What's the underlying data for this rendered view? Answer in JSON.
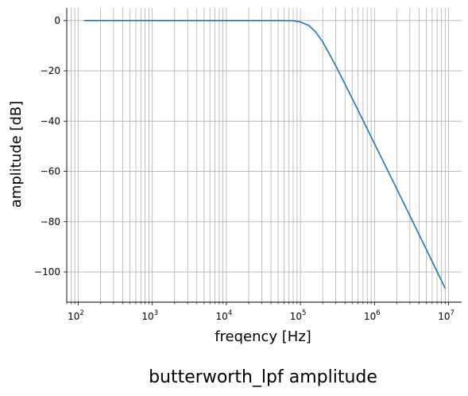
{
  "chart_data": {
    "type": "line",
    "title": "butterworth_lpf amplitude",
    "xlabel": "freqency [Hz]",
    "ylabel": "amplitude [dB]",
    "x_scale": "log",
    "xlim": [
      70,
      15000000
    ],
    "ylim": [
      -112,
      5
    ],
    "grid": true,
    "grid_minor_x": true,
    "line_color": "#1f77b4",
    "grid_color": "#b0b0b0",
    "x_ticks": [
      {
        "base": "10",
        "exp": "2",
        "value": 100
      },
      {
        "base": "10",
        "exp": "3",
        "value": 1000
      },
      {
        "base": "10",
        "exp": "4",
        "value": 10000
      },
      {
        "base": "10",
        "exp": "5",
        "value": 100000
      },
      {
        "base": "10",
        "exp": "6",
        "value": 1000000
      },
      {
        "base": "10",
        "exp": "7",
        "value": 10000000
      }
    ],
    "y_ticks": [
      {
        "label": "0",
        "value": 0
      },
      {
        "label": "−20",
        "value": -20
      },
      {
        "label": "−40",
        "value": -40
      },
      {
        "label": "−60",
        "value": -60
      },
      {
        "label": "−80",
        "value": -80
      },
      {
        "label": "−100",
        "value": -100
      }
    ],
    "series": [
      {
        "points": [
          [
            120,
            0
          ],
          [
            1000,
            0
          ],
          [
            10000,
            0
          ],
          [
            50000,
            0
          ],
          [
            80000,
            -0.1
          ],
          [
            100000,
            -0.6
          ],
          [
            130000,
            -2
          ],
          [
            160000,
            -4.5
          ],
          [
            200000,
            -8.5
          ],
          [
            300000,
            -18
          ],
          [
            500000,
            -31
          ],
          [
            1000000,
            -49
          ],
          [
            2000000,
            -67
          ],
          [
            5000000,
            -91
          ],
          [
            9000000,
            -106.5
          ]
        ]
      }
    ]
  }
}
